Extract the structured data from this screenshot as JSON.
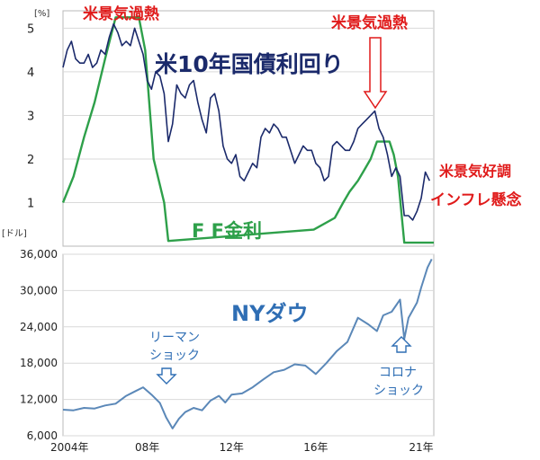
{
  "chart_data": [
    {
      "type": "line",
      "unit_label": "[%]",
      "x_range": [
        2004.0,
        2021.6
      ],
      "ylim": [
        0,
        5.4
      ],
      "yticks": [
        1,
        2,
        3,
        4,
        5
      ],
      "grid": "horizontal",
      "series": [
        {
          "name": "米10年国債利回り",
          "color": "#1b2a6b",
          "x": [
            2004.0,
            2004.2,
            2004.4,
            2004.6,
            2004.8,
            2005.0,
            2005.2,
            2005.4,
            2005.6,
            2005.8,
            2006.0,
            2006.2,
            2006.4,
            2006.6,
            2006.8,
            2007.0,
            2007.2,
            2007.4,
            2007.6,
            2007.8,
            2008.0,
            2008.2,
            2008.4,
            2008.6,
            2008.8,
            2009.0,
            2009.2,
            2009.4,
            2009.6,
            2009.8,
            2010.0,
            2010.2,
            2010.4,
            2010.6,
            2010.8,
            2011.0,
            2011.2,
            2011.4,
            2011.6,
            2011.8,
            2012.0,
            2012.2,
            2012.4,
            2012.6,
            2012.8,
            2013.0,
            2013.2,
            2013.4,
            2013.6,
            2013.8,
            2014.0,
            2014.2,
            2014.4,
            2014.6,
            2014.8,
            2015.0,
            2015.2,
            2015.4,
            2015.6,
            2015.8,
            2016.0,
            2016.2,
            2016.4,
            2016.6,
            2016.8,
            2017.0,
            2017.2,
            2017.4,
            2017.6,
            2017.8,
            2018.0,
            2018.2,
            2018.4,
            2018.6,
            2018.8,
            2019.0,
            2019.2,
            2019.4,
            2019.6,
            2019.8,
            2020.0,
            2020.2,
            2020.4,
            2020.6,
            2020.8,
            2021.0,
            2021.2,
            2021.4
          ],
          "values": [
            4.1,
            4.5,
            4.7,
            4.3,
            4.2,
            4.2,
            4.4,
            4.1,
            4.2,
            4.5,
            4.4,
            4.8,
            5.1,
            4.9,
            4.6,
            4.7,
            4.6,
            5.0,
            4.7,
            4.4,
            3.8,
            3.6,
            4.0,
            3.9,
            3.5,
            2.4,
            2.8,
            3.7,
            3.5,
            3.4,
            3.7,
            3.8,
            3.3,
            2.9,
            2.6,
            3.4,
            3.5,
            3.1,
            2.3,
            2.0,
            1.9,
            2.1,
            1.6,
            1.5,
            1.7,
            1.9,
            1.8,
            2.5,
            2.7,
            2.6,
            2.8,
            2.7,
            2.5,
            2.5,
            2.2,
            1.9,
            2.1,
            2.3,
            2.2,
            2.2,
            1.9,
            1.8,
            1.5,
            1.6,
            2.3,
            2.4,
            2.3,
            2.2,
            2.2,
            2.4,
            2.7,
            2.8,
            2.9,
            3.0,
            3.1,
            2.7,
            2.5,
            2.1,
            1.6,
            1.8,
            1.6,
            0.7,
            0.7,
            0.6,
            0.8,
            1.1,
            1.7,
            1.5
          ]
        },
        {
          "name": "F F金利",
          "color": "#2ea04a",
          "x": [
            2004.0,
            2004.5,
            2005.0,
            2005.5,
            2006.0,
            2006.5,
            2007.0,
            2007.6,
            2007.9,
            2008.3,
            2008.8,
            2009.0,
            2015.9,
            2016.9,
            2017.3,
            2017.6,
            2018.0,
            2018.3,
            2018.6,
            2018.9,
            2019.5,
            2019.7,
            2019.9,
            2020.2,
            2021.6
          ],
          "values": [
            1.0,
            1.6,
            2.5,
            3.3,
            4.3,
            5.25,
            5.25,
            5.25,
            4.5,
            2.0,
            1.0,
            0.12,
            0.38,
            0.65,
            1.0,
            1.25,
            1.5,
            1.75,
            2.0,
            2.4,
            2.4,
            2.1,
            1.6,
            0.08,
            0.08
          ]
        }
      ],
      "annotations": [
        "米景気過熱",
        "米景気過熱",
        "米景気好調",
        "インフレ懸念"
      ]
    },
    {
      "type": "line",
      "unit_label": "[ドル]",
      "x_range": [
        2004.0,
        2021.6
      ],
      "ylim": [
        6000,
        36000
      ],
      "yticks": [
        6000,
        12000,
        18000,
        24000,
        30000,
        36000
      ],
      "ytick_labels": [
        "6,000",
        "12,000",
        "18,000",
        "24,000",
        "30,000",
        "36,000"
      ],
      "xticks": [
        2004,
        2008,
        2012,
        2016,
        2021
      ],
      "xtick_labels": [
        "2004年",
        "08年",
        "12年",
        "16年",
        "21年"
      ],
      "grid": "horizontal",
      "series": [
        {
          "name": "NYダウ",
          "color": "#5b88b8",
          "x": [
            2004.0,
            2004.5,
            2005.0,
            2005.5,
            2006.0,
            2006.5,
            2007.0,
            2007.4,
            2007.8,
            2008.2,
            2008.6,
            2008.9,
            2009.2,
            2009.5,
            2009.8,
            2010.2,
            2010.6,
            2011.0,
            2011.4,
            2011.7,
            2012.0,
            2012.5,
            2013.0,
            2013.5,
            2014.0,
            2014.5,
            2015.0,
            2015.5,
            2016.0,
            2016.5,
            2017.0,
            2017.5,
            2018.0,
            2018.5,
            2018.9,
            2019.2,
            2019.6,
            2020.0,
            2020.2,
            2020.4,
            2020.8,
            2021.0,
            2021.3,
            2021.5
          ],
          "values": [
            10300,
            10200,
            10600,
            10500,
            11000,
            11300,
            12600,
            13300,
            14000,
            12800,
            11400,
            9000,
            7200,
            8800,
            9900,
            10600,
            10200,
            11800,
            12600,
            11500,
            12800,
            13000,
            14000,
            15300,
            16500,
            16900,
            17800,
            17600,
            16200,
            18000,
            20000,
            21500,
            25500,
            24400,
            23300,
            25900,
            26500,
            28500,
            22000,
            25500,
            28000,
            30500,
            33800,
            35200
          ]
        }
      ],
      "annotations": [
        "リーマン",
        "ショック",
        "コロナ",
        "ショック"
      ]
    }
  ],
  "labels": {
    "rate_unit": "[%]",
    "dow_unit": "[ドル]",
    "us10y": "米10年国債利回り",
    "ff": "F F金利",
    "dow": "NYダウ",
    "overheat_1": "米景気過熱",
    "overheat_2": "米景気過熱",
    "good_econ": "米景気好調",
    "inflation": "インフレ懸念",
    "lehman_1": "リーマン",
    "lehman_2": "ショック",
    "corona_1": "コロナ",
    "corona_2": "ショック"
  }
}
